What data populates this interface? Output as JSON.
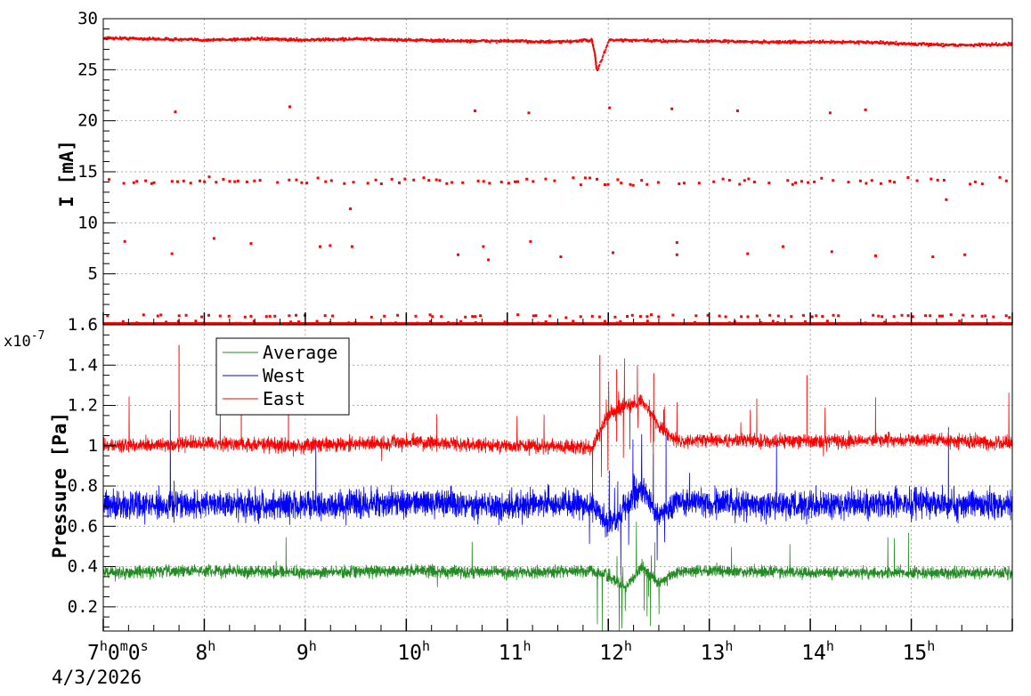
{
  "chart_data": [
    {
      "type": "scatter",
      "ylabel": "I [mA]",
      "ylim": [
        0,
        30
      ],
      "yticks": [
        "0",
        "5",
        "10",
        "15",
        "20",
        "25",
        "30"
      ],
      "grid": true,
      "series": [
        {
          "color": "#ff0000",
          "main_level": 28,
          "points": [
            [
              "07:00",
              28.2
            ],
            [
              "07:30",
              28.1
            ],
            [
              "08:00",
              28.0
            ],
            [
              "08:30",
              28.1
            ],
            [
              "09:00",
              28.0
            ],
            [
              "09:30",
              28.1
            ],
            [
              "10:00",
              28.0
            ],
            [
              "10:30",
              27.9
            ],
            [
              "11:00",
              27.9
            ],
            [
              "11:30",
              27.8
            ],
            [
              "11:50",
              28.0
            ],
            [
              "11:53",
              25.0
            ],
            [
              "12:00",
              28.0
            ],
            [
              "12:30",
              27.9
            ],
            [
              "13:00",
              27.9
            ],
            [
              "13:30",
              27.8
            ],
            [
              "14:00",
              27.8
            ],
            [
              "14:30",
              27.8
            ],
            [
              "15:00",
              27.6
            ],
            [
              "15:30",
              27.5
            ],
            [
              "16:00",
              27.6
            ]
          ],
          "isolated_points": [
            [
              "07:42",
              21.0
            ],
            [
              "08:50",
              21.5
            ],
            [
              "10:40",
              21.1
            ],
            [
              "11:12",
              20.9
            ],
            [
              "12:00",
              21.4
            ],
            [
              "12:37",
              21.3
            ],
            [
              "13:16",
              21.1
            ],
            [
              "14:11",
              20.9
            ],
            [
              "14:32",
              21.2
            ],
            [
              "09:26",
              11.5
            ],
            [
              "15:20",
              12.4
            ],
            [
              "07:12",
              8.3
            ],
            [
              "07:40",
              7.1
            ],
            [
              "08:05",
              8.6
            ],
            [
              "08:27",
              8.1
            ],
            [
              "09:08",
              7.8
            ],
            [
              "09:14",
              7.9
            ],
            [
              "09:27",
              7.8
            ],
            [
              "10:30",
              7.0
            ],
            [
              "10:45",
              7.8
            ],
            [
              "10:48",
              6.5
            ],
            [
              "11:13",
              8.3
            ],
            [
              "11:31",
              6.8
            ],
            [
              "12:02",
              7.2
            ],
            [
              "12:40",
              8.2
            ],
            [
              "12:40",
              7.0
            ],
            [
              "13:22",
              7.1
            ],
            [
              "13:43",
              7.8
            ],
            [
              "14:12",
              7.3
            ],
            [
              "14:38",
              6.9
            ],
            [
              "15:12",
              6.8
            ],
            [
              "15:31",
              7.0
            ]
          ],
          "dropout_levels": [
            14.2,
            1.0,
            0.2
          ]
        }
      ]
    },
    {
      "type": "line",
      "ylabel": "Pressure [Pa]",
      "exponent": "x10",
      "exponent_power": "-7",
      "ylim": [
        0.08,
        1.6
      ],
      "yticks": [
        "0.2",
        "0.4",
        "0.6",
        "0.8",
        "1",
        "1.2",
        "1.4",
        "1.6"
      ],
      "x": [
        "07:00",
        "08:00",
        "09:00",
        "10:00",
        "11:00",
        "11:50",
        "12:00",
        "12:10",
        "12:20",
        "12:30",
        "12:40",
        "13:00",
        "14:00",
        "15:00",
        "16:00"
      ],
      "legend": {
        "placement": "top-left",
        "entries": [
          "Average",
          "West",
          "East"
        ]
      },
      "grid": true,
      "series": [
        {
          "name": "Average",
          "color": "#228b22",
          "values": [
            0.37,
            0.38,
            0.37,
            0.38,
            0.37,
            0.38,
            0.35,
            0.3,
            0.4,
            0.32,
            0.37,
            0.38,
            0.37,
            0.37,
            0.37
          ],
          "spread": 0.05
        },
        {
          "name": "West",
          "color": "#0000ff",
          "values": [
            0.7,
            0.71,
            0.7,
            0.72,
            0.7,
            0.71,
            0.6,
            0.7,
            0.8,
            0.65,
            0.71,
            0.72,
            0.7,
            0.72,
            0.7
          ],
          "spread": 0.12
        },
        {
          "name": "East",
          "color": "#ff0000",
          "values": [
            1.0,
            1.01,
            1.0,
            1.02,
            1.0,
            0.99,
            1.15,
            1.2,
            1.22,
            1.1,
            1.02,
            1.03,
            1.02,
            1.03,
            1.01
          ],
          "spread": 0.06
        }
      ]
    }
  ],
  "x_axis": {
    "hour_ticks": [
      {
        "base": "7",
        "sup": "h",
        "tail": "0",
        "tail_sup": "m",
        "tail2": "0",
        "tail2_sup": "s"
      },
      {
        "base": "8",
        "sup": "h"
      },
      {
        "base": "9",
        "sup": "h"
      },
      {
        "base": "10",
        "sup": "h"
      },
      {
        "base": "11",
        "sup": "h"
      },
      {
        "base": "12",
        "sup": "h"
      },
      {
        "base": "13",
        "sup": "h"
      },
      {
        "base": "14",
        "sup": "h"
      },
      {
        "base": "15",
        "sup": "h"
      }
    ],
    "date": "4/3/2026"
  },
  "colors": {
    "current": "#ff0000",
    "average": "#228b22",
    "west": "#0000ff",
    "east": "#ff0000",
    "grid": "#aaaaaa"
  }
}
